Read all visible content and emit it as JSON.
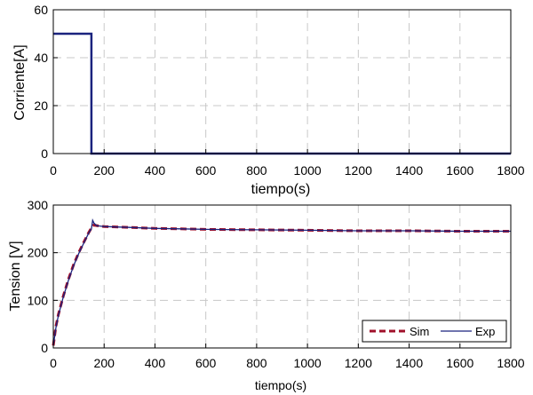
{
  "chart_data": [
    {
      "type": "line",
      "xlabel": "tiempo(s)",
      "ylabel": "Corriente[A]",
      "xlim": [
        0,
        1800
      ],
      "ylim": [
        0,
        60
      ],
      "xticks": [
        "0",
        "200",
        "400",
        "600",
        "800",
        "1000",
        "1200",
        "1400",
        "1600",
        "1800"
      ],
      "yticks": [
        "0",
        "20",
        "40",
        "60"
      ],
      "grid": true,
      "series": [
        {
          "color": "#1a237e",
          "x": [
            0,
            150,
            150,
            1800
          ],
          "y": [
            50,
            50,
            0,
            0
          ]
        }
      ]
    },
    {
      "type": "line",
      "xlabel": "tiempo(s)",
      "ylabel": "Tension [V]",
      "xlim": [
        0,
        1800
      ],
      "ylim": [
        0,
        300
      ],
      "xticks": [
        "0",
        "200",
        "400",
        "600",
        "800",
        "1000",
        "1200",
        "1400",
        "1600",
        "1800"
      ],
      "yticks": [
        "0",
        "100",
        "200",
        "300"
      ],
      "grid": true,
      "legend": "bottom-right",
      "series": [
        {
          "name": "Sim",
          "color": "#a0102a",
          "style": "dashed",
          "x": [
            0,
            10,
            20,
            40,
            60,
            80,
            100,
            120,
            140,
            150,
            160,
            170,
            180,
            200,
            300,
            400,
            500,
            600,
            800,
            1000,
            1200,
            1400,
            1600,
            1800
          ],
          "y": [
            5,
            45,
            70,
            110,
            145,
            175,
            200,
            222,
            243,
            252,
            258,
            257,
            256,
            255,
            253,
            251,
            250,
            249,
            248,
            247,
            246,
            246,
            245,
            245
          ]
        },
        {
          "name": "Exp",
          "color": "#1a237e",
          "style": "solid",
          "x": [
            0,
            10,
            20,
            40,
            60,
            80,
            100,
            120,
            140,
            150,
            155,
            160,
            170,
            180,
            200,
            300,
            400,
            500,
            600,
            800,
            1000,
            1200,
            1400,
            1600,
            1800
          ],
          "y": [
            5,
            42,
            68,
            108,
            143,
            173,
            198,
            220,
            242,
            250,
            268,
            262,
            257,
            256,
            255,
            253,
            251,
            250,
            249,
            248,
            247,
            246,
            246,
            245,
            245
          ]
        }
      ]
    }
  ]
}
